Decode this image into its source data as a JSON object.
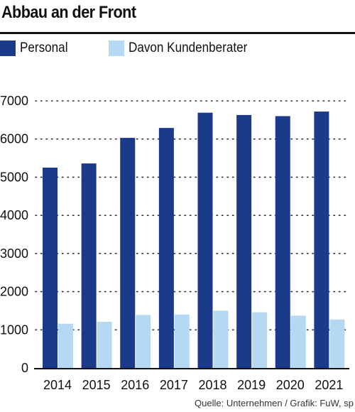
{
  "header": {
    "title": "Abbau an der Front"
  },
  "legend": [
    {
      "label": "Personal",
      "color": "#1c3a8a"
    },
    {
      "label": "Davon Kundenberater",
      "color": "#b5d9f2"
    }
  ],
  "source": "Quelle: Unternehmen / Grafik: FuW, sp",
  "chart_data": {
    "type": "bar",
    "title": "Abbau an der Front",
    "categories": [
      "2014",
      "2015",
      "2016",
      "2017",
      "2018",
      "2019",
      "2020",
      "2021"
    ],
    "series": [
      {
        "name": "Personal",
        "color": "#1c3a8a",
        "values": [
          5250,
          5360,
          6030,
          6290,
          6690,
          6630,
          6600,
          6720
        ]
      },
      {
        "name": "Davon Kundenberater",
        "color": "#b5d9f2",
        "values": [
          1160,
          1210,
          1390,
          1400,
          1500,
          1460,
          1370,
          1270
        ]
      }
    ],
    "ylim": [
      0,
      7000
    ],
    "yticks": [
      "0",
      "1000",
      "2000",
      "3000",
      "4000",
      "5000",
      "6000",
      "7000"
    ],
    "grid": true,
    "grid_style": "dotted",
    "legend_position": "top-left",
    "xlabel": "",
    "ylabel": ""
  }
}
